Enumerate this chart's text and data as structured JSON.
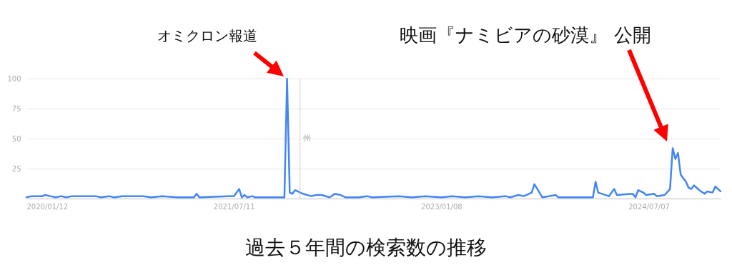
{
  "chart_data": {
    "type": "line",
    "x": [
      "2020-01-12",
      "2020-01-26",
      "2020-02-23",
      "2020-03-01",
      "2020-03-15",
      "2020-03-29",
      "2020-04-12",
      "2020-04-26",
      "2020-05-10",
      "2020-07-12",
      "2020-07-26",
      "2020-08-16",
      "2020-08-30",
      "2020-09-20",
      "2020-11-15",
      "2020-12-06",
      "2021-01-03",
      "2021-02-14",
      "2021-03-28",
      "2021-04-04",
      "2021-04-11",
      "2021-06-27",
      "2021-07-11",
      "2021-07-25",
      "2021-08-01",
      "2021-08-08",
      "2021-08-15",
      "2021-08-29",
      "2021-09-05",
      "2021-11-21",
      "2021-11-28",
      "2021-12-05",
      "2021-12-12",
      "2021-12-19",
      "2021-12-26",
      "2022-01-09",
      "2022-01-30",
      "2022-02-13",
      "2022-02-27",
      "2022-03-20",
      "2022-04-03",
      "2022-04-17",
      "2022-05-01",
      "2022-06-05",
      "2022-06-26",
      "2022-07-10",
      "2022-09-18",
      "2022-10-23",
      "2022-11-27",
      "2023-01-08",
      "2023-02-05",
      "2023-03-12",
      "2023-04-16",
      "2023-05-21",
      "2023-06-25",
      "2023-07-09",
      "2023-07-30",
      "2023-08-13",
      "2023-09-03",
      "2023-09-10",
      "2023-10-01",
      "2023-11-05",
      "2023-11-12",
      "2023-12-24",
      "2024-02-11",
      "2024-02-18",
      "2024-02-25",
      "2024-03-24",
      "2024-04-07",
      "2024-04-14",
      "2024-05-26",
      "2024-06-02",
      "2024-06-09",
      "2024-06-23",
      "2024-06-30",
      "2024-07-21",
      "2024-07-28",
      "2024-08-18",
      "2024-09-01",
      "2024-09-08",
      "2024-09-15",
      "2024-09-22",
      "2024-09-29",
      "2024-10-13",
      "2024-10-20",
      "2024-10-27",
      "2024-11-03",
      "2024-11-17",
      "2024-12-01",
      "2024-12-08",
      "2024-12-22",
      "2024-12-29",
      "2025-01-12"
    ],
    "series": [
      {
        "color": "#4285f4",
        "values": [
          1,
          2,
          2,
          3,
          2,
          1,
          2,
          1,
          2,
          2,
          1,
          2,
          1,
          2,
          2,
          1,
          2,
          1,
          1,
          4,
          1,
          2,
          2,
          8,
          1,
          3,
          1,
          2,
          1,
          1,
          100,
          5,
          4,
          7,
          6,
          4,
          2,
          3,
          3,
          1,
          4,
          3,
          1,
          1,
          2,
          1,
          2,
          1,
          2,
          1,
          2,
          1,
          2,
          1,
          2,
          1,
          3,
          2,
          5,
          12,
          1,
          3,
          1,
          1,
          1,
          14,
          5,
          2,
          8,
          3,
          4,
          1,
          7,
          5,
          3,
          4,
          2,
          3,
          8,
          42,
          33,
          38,
          20,
          14,
          9,
          8,
          11,
          7,
          4,
          6,
          5,
          10,
          6
        ]
      }
    ],
    "xlim": [
      "2020-01-12",
      "2025-01-12"
    ],
    "xticks": [
      {
        "value": "2020-01-12",
        "label": "2020/01/12"
      },
      {
        "value": "2021-07-11",
        "label": "2021/07/11"
      },
      {
        "value": "2023-01-08",
        "label": "2023/01/08"
      },
      {
        "value": "2024-07-07",
        "label": "2024/07/07"
      }
    ],
    "ylim": [
      0,
      100
    ],
    "yticks": [
      25,
      50,
      75,
      100
    ],
    "grid": "y",
    "marker": "none",
    "line_style": "solid",
    "ref_lines": [
      {
        "axis": "x",
        "value": "2022-01-01",
        "label": "州",
        "color": "#cccccc"
      }
    ],
    "annotations": [
      "オミクロン報道",
      "映画『ナミビアの砂漠』 公開",
      "過去５年間の検索数の推移"
    ]
  }
}
